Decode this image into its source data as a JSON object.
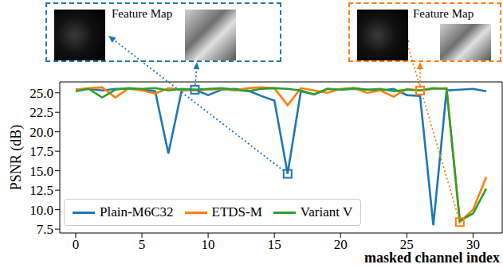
{
  "chart_data": {
    "type": "line",
    "xlabel": "masked channel index",
    "ylabel": "PSNR (dB)",
    "x": [
      0,
      1,
      2,
      3,
      4,
      5,
      6,
      7,
      8,
      9,
      10,
      11,
      12,
      13,
      14,
      15,
      16,
      17,
      18,
      19,
      20,
      21,
      22,
      23,
      24,
      25,
      26,
      27,
      28,
      29,
      30,
      31
    ],
    "series": [
      {
        "name": "Plain-M6C32",
        "color": "#1f77b4",
        "values": [
          25.4,
          25.5,
          25.3,
          25.5,
          25.5,
          25.4,
          25.2,
          17.2,
          25.3,
          25.4,
          24.7,
          25.4,
          25.5,
          25.3,
          24.6,
          24.0,
          14.6,
          25.2,
          24.8,
          25.5,
          25.4,
          25.5,
          25.4,
          25.3,
          25.5,
          24.7,
          24.6,
          8.0,
          25.3,
          25.4,
          25.5,
          25.2
        ]
      },
      {
        "name": "ETDS-M",
        "color": "#ff7f0e",
        "values": [
          25.4,
          25.6,
          25.7,
          24.4,
          25.6,
          25.3,
          24.9,
          25.6,
          25.4,
          25.3,
          25.4,
          25.5,
          25.3,
          25.6,
          25.7,
          25.6,
          23.4,
          25.6,
          25.3,
          25.0,
          25.5,
          25.6,
          25.0,
          25.3,
          24.5,
          25.5,
          25.3,
          25.5,
          25.6,
          8.4,
          10.0,
          14.2
        ]
      },
      {
        "name": "Variant V",
        "color": "#2ca02c",
        "values": [
          25.2,
          25.5,
          24.4,
          25.4,
          25.6,
          25.5,
          25.6,
          25.3,
          25.5,
          25.4,
          25.5,
          25.6,
          25.4,
          25.2,
          25.5,
          25.6,
          25.5,
          25.3,
          24.8,
          25.5,
          25.4,
          25.6,
          25.4,
          25.5,
          25.2,
          25.4,
          25.3,
          25.6,
          25.5,
          8.6,
          9.5,
          12.7
        ]
      }
    ],
    "xlim": [
      -1.2,
      32.2
    ],
    "xticks": [
      0,
      5,
      10,
      15,
      20,
      25,
      30
    ],
    "ylim": [
      7.0,
      26.4
    ],
    "yticks": [
      7.5,
      {
        "value": 10,
        "label": "10.0"
      },
      12.5,
      {
        "value": 15,
        "label": "15.0"
      },
      17.5,
      {
        "value": 20,
        "label": "20.0"
      },
      22.5,
      {
        "value": 25,
        "label": "25.0"
      }
    ],
    "legend": "lower left",
    "annotations": [
      {
        "text": "Feature Map",
        "color": "#1f77b4",
        "points": [
          {
            "series": "Plain-M6C32",
            "x": 9
          },
          {
            "series": "Plain-M6C32",
            "x": 16
          }
        ]
      },
      {
        "text": "Feature Map",
        "color": "#ff7f0e",
        "points": [
          {
            "series": "ETDS-M",
            "x": 26
          },
          {
            "series": "ETDS-M",
            "x": 29
          }
        ]
      }
    ]
  }
}
